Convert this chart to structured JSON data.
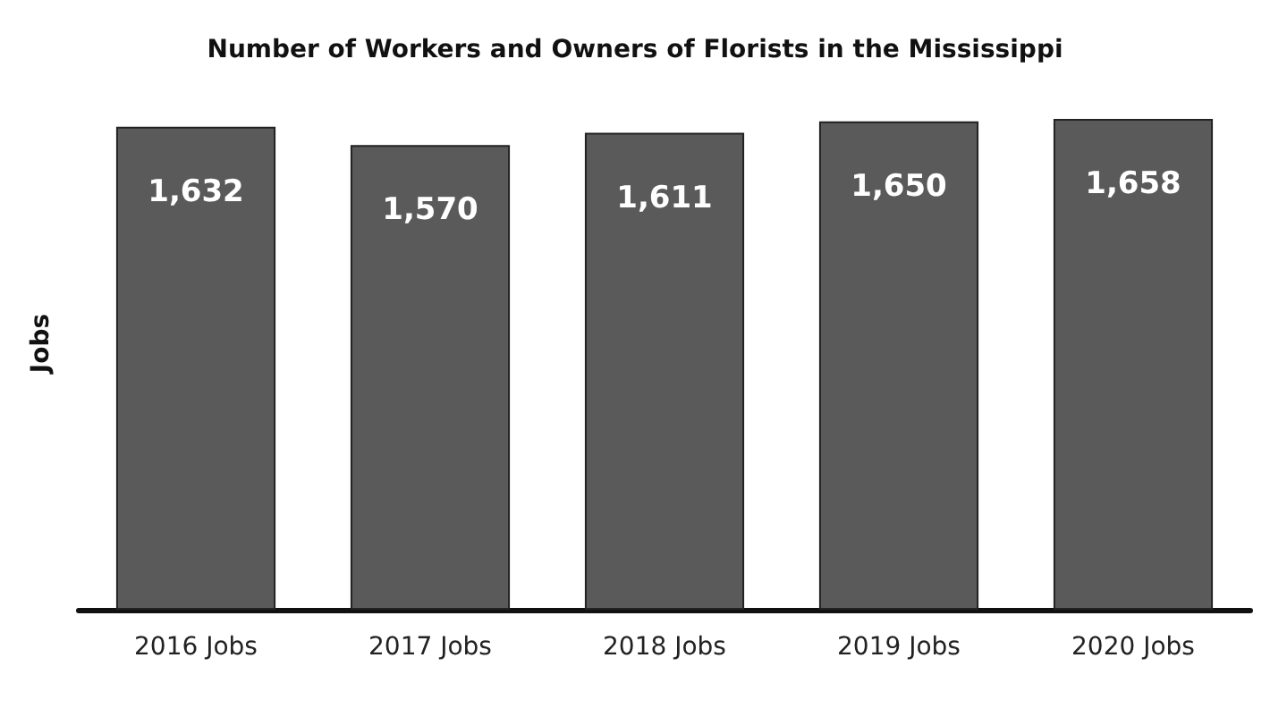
{
  "chart_data": {
    "type": "bar",
    "title": "Number of Workers and Owners of Florists in the Mississippi",
    "ylabel": "Jobs",
    "categories": [
      "2016 Jobs",
      "2017 Jobs",
      "2018 Jobs",
      "2019 Jobs",
      "2020 Jobs"
    ],
    "values": [
      1632,
      1570,
      1611,
      1650,
      1658
    ],
    "value_labels": [
      "1,632",
      "1,570",
      "1,611",
      "1,650",
      "1,658"
    ],
    "color": "#5a5a5a",
    "tick_labels": "x"
  }
}
